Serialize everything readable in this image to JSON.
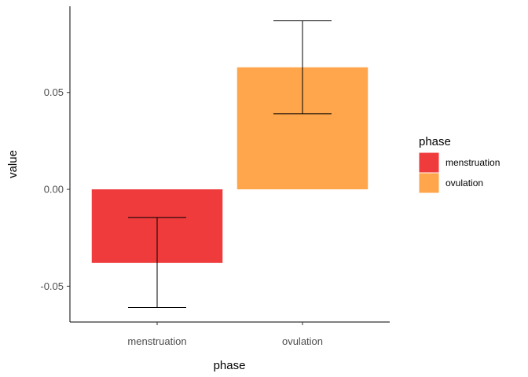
{
  "chart_data": {
    "type": "bar",
    "xlabel": "phase",
    "ylabel": "value",
    "categories": [
      "menstruation",
      "ovulation"
    ],
    "values": [
      -0.038,
      0.063
    ],
    "error_bars": [
      {
        "low": -0.061,
        "high": -0.0145
      },
      {
        "low": 0.039,
        "high": 0.087
      }
    ],
    "ylim": [
      -0.0685,
      0.0945
    ],
    "yticks": [
      -0.05,
      0.0,
      0.05
    ],
    "ytick_labels": [
      "-0.05",
      "0.00",
      "0.05"
    ],
    "colors": [
      "#EF3B3C",
      "#FFA64D"
    ],
    "grid": false,
    "legend": {
      "title": "phase",
      "position": "right",
      "items": [
        "menstruation",
        "ovulation"
      ]
    }
  }
}
